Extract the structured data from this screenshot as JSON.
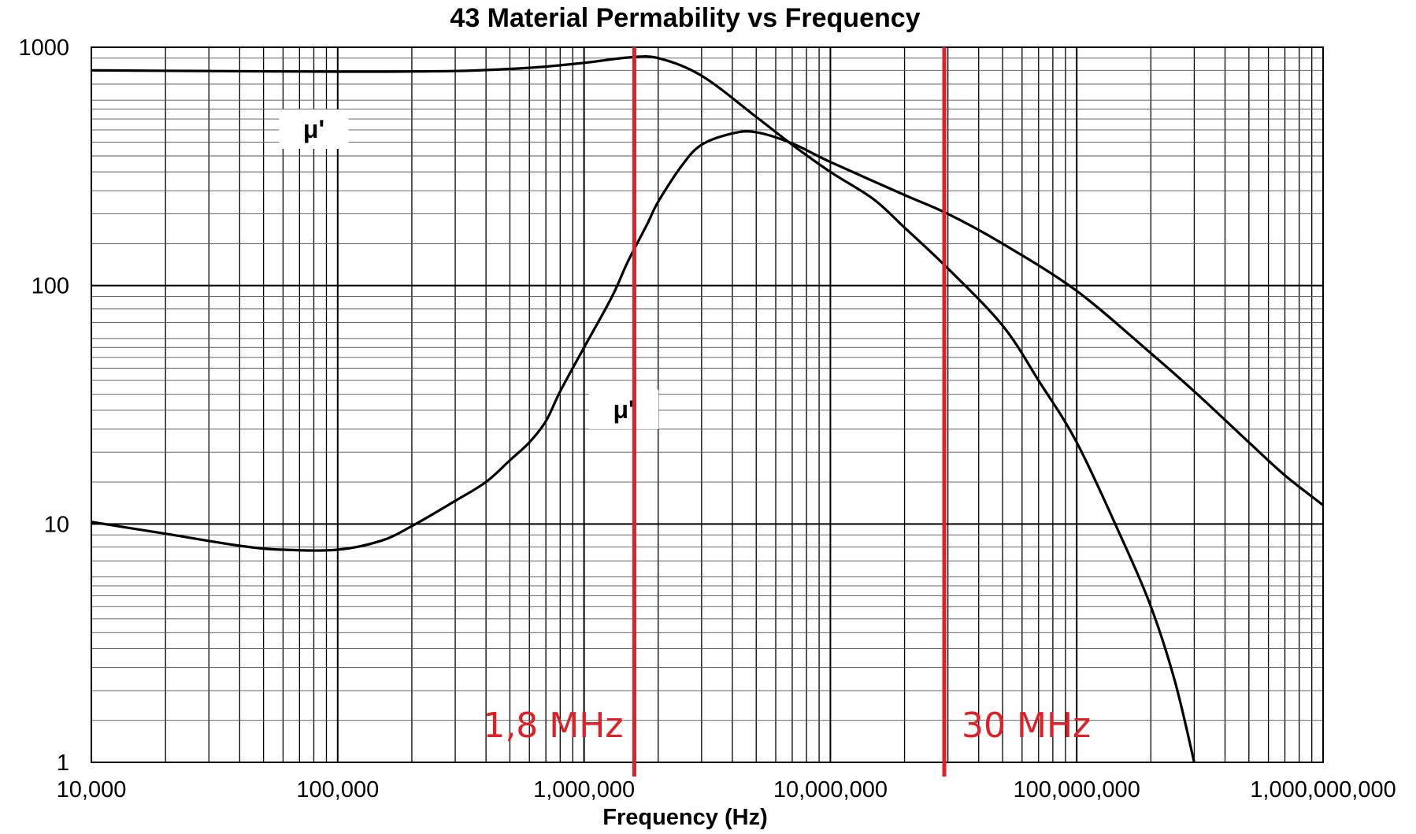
{
  "chart_data": {
    "type": "line",
    "title": "43 Material Permability vs Frequency",
    "xlabel": "Frequency (Hz)",
    "ylabel": "",
    "xscale": "log",
    "yscale": "log",
    "xlim": [
      10000,
      1000000000
    ],
    "ylim": [
      1,
      1000
    ],
    "grid": true,
    "x_ticks": [
      {
        "value": 10000,
        "label": "10,000"
      },
      {
        "value": 100000,
        "label": "100,000"
      },
      {
        "value": 1000000,
        "label": "1,000,000"
      },
      {
        "value": 10000000,
        "label": "10,000,000"
      },
      {
        "value": 100000000,
        "label": "100,000,000"
      },
      {
        "value": 1000000000,
        "label": "1,000,000,000"
      }
    ],
    "y_ticks": [
      {
        "value": 1,
        "label": "1"
      },
      {
        "value": 10,
        "label": "10"
      },
      {
        "value": 100,
        "label": "100"
      },
      {
        "value": 1000,
        "label": "1000"
      }
    ],
    "series": [
      {
        "label_text": "μ'",
        "label_at": {
          "x": 80000,
          "y": 450
        },
        "color": "#000000",
        "points": [
          [
            10000,
            800
          ],
          [
            30000,
            795
          ],
          [
            100000,
            790
          ],
          [
            300000,
            795
          ],
          [
            600000,
            820
          ],
          [
            1000000,
            860
          ],
          [
            1500000,
            905
          ],
          [
            2000000,
            900
          ],
          [
            3000000,
            760
          ],
          [
            5000000,
            510
          ],
          [
            7000000,
            390
          ],
          [
            10000000,
            300
          ],
          [
            15000000,
            230
          ],
          [
            20000000,
            175
          ],
          [
            30000000,
            118
          ],
          [
            50000000,
            68
          ],
          [
            70000000,
            40
          ],
          [
            100000000,
            22
          ],
          [
            150000000,
            9
          ],
          [
            200000000,
            4.5
          ],
          [
            250000000,
            2.2
          ],
          [
            300000000,
            1.0
          ]
        ]
      },
      {
        "label_text": "μ'",
        "label_at": {
          "x": 1450000,
          "y": 30
        },
        "color": "#000000",
        "points": [
          [
            10000,
            10.2
          ],
          [
            20000,
            9.1
          ],
          [
            40000,
            8.1
          ],
          [
            60000,
            7.8
          ],
          [
            100000,
            7.8
          ],
          [
            150000,
            8.5
          ],
          [
            200000,
            9.8
          ],
          [
            300000,
            12.5
          ],
          [
            400000,
            15
          ],
          [
            500000,
            18.5
          ],
          [
            600000,
            22
          ],
          [
            700000,
            27
          ],
          [
            800000,
            36
          ],
          [
            1000000,
            55
          ],
          [
            1300000,
            90
          ],
          [
            1500000,
            125
          ],
          [
            1800000,
            180
          ],
          [
            2000000,
            225
          ],
          [
            2500000,
            320
          ],
          [
            3000000,
            390
          ],
          [
            4000000,
            435
          ],
          [
            5000000,
            440
          ],
          [
            7000000,
            395
          ],
          [
            10000000,
            330
          ],
          [
            20000000,
            240
          ],
          [
            30000000,
            200
          ],
          [
            50000000,
            150
          ],
          [
            100000000,
            95
          ],
          [
            200000000,
            52
          ],
          [
            300000000,
            36
          ],
          [
            500000000,
            22
          ],
          [
            700000000,
            16
          ],
          [
            1000000000,
            12
          ]
        ]
      }
    ],
    "markers": [
      {
        "x": 1600000,
        "label": "1,8 MHz",
        "color": "#e01f26",
        "label_side": "left"
      },
      {
        "x": 29000000,
        "label": "30 MHz",
        "color": "#e01f26",
        "label_side": "right"
      }
    ]
  }
}
